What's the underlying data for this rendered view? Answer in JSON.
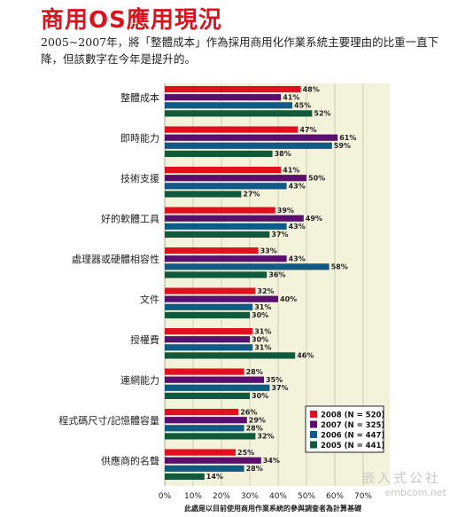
{
  "header": {
    "title": "商用OS應用現況",
    "subtitle": "2005~2007年，將「整體成本」作為採用商用化作業系統主要理由的比重一直下降，但該數字在今年是提升的。"
  },
  "watermark": {
    "text": "嵌入式公社",
    "sub": "embcom.net"
  },
  "chart_data": {
    "type": "bar",
    "orientation": "horizontal",
    "categories": [
      "整體成本",
      "即時能力",
      "技術支援",
      "好的軟體工具",
      "處理器或硬體相容性",
      "文件",
      "授權費",
      "連網能力",
      "程式碼尺寸/記憶體容量",
      "供應商的名聲"
    ],
    "series": [
      {
        "name": "2008 (N = 520)",
        "color": "#e0101e",
        "values": [
          48,
          47,
          41,
          39,
          33,
          32,
          31,
          28,
          26,
          25
        ]
      },
      {
        "name": "2007 (N = 325)",
        "color": "#5a0f6e",
        "values": [
          41,
          61,
          50,
          49,
          43,
          40,
          30,
          35,
          29,
          34
        ]
      },
      {
        "name": "2006 (N = 447)",
        "color": "#115a86",
        "values": [
          45,
          59,
          43,
          43,
          58,
          31,
          31,
          37,
          28,
          28
        ]
      },
      {
        "name": "2005 (N = 441)",
        "color": "#0f5a3c",
        "values": [
          52,
          38,
          27,
          37,
          36,
          30,
          46,
          30,
          32,
          14
        ]
      }
    ],
    "xlim": [
      0,
      70
    ],
    "xticks": [
      "0%",
      "10%",
      "20%",
      "30%",
      "40%",
      "50%",
      "60%",
      "70%"
    ],
    "value_suffix": "%",
    "grid": true,
    "legend_position": "bottom-right",
    "footnote": "此處是以目前使用商用作業系統的參與調查者為計算基礎",
    "colors": {
      "plot_background": "#f3f3dc",
      "grid": "#b8b8a0",
      "page": "#ffffff"
    }
  }
}
